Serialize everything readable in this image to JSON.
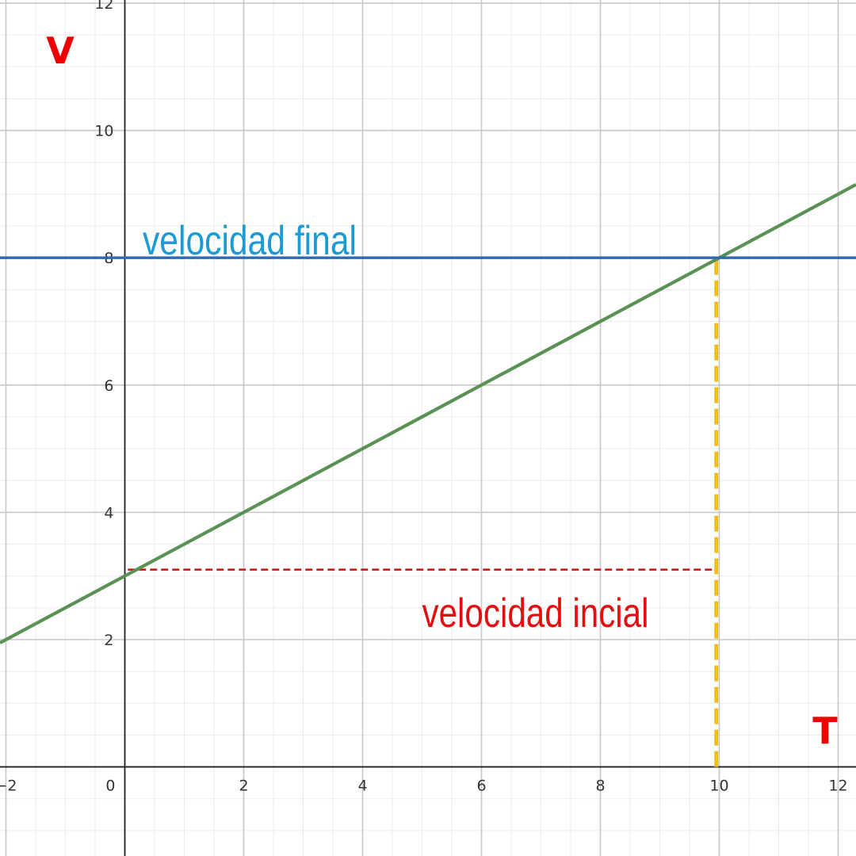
{
  "chart_data": {
    "type": "line",
    "xlim": [
      -2.1,
      12.3
    ],
    "ylim": [
      -1.4,
      12.05
    ],
    "x_ticks": [
      -2,
      0,
      2,
      4,
      6,
      8,
      10,
      12
    ],
    "y_ticks": [
      2,
      4,
      6,
      8,
      10,
      12
    ],
    "x_tick_labels": [
      "−2",
      "0",
      "2",
      "4",
      "6",
      "8",
      "10",
      "12"
    ],
    "y_tick_labels": [
      "2",
      "4",
      "6",
      "8",
      "10",
      "12"
    ],
    "major_grid_step": 2,
    "minor_grid_step": 0.5,
    "grid": true,
    "xlabel": "T",
    "ylabel": "V",
    "series": [
      {
        "type": "line",
        "slope": 0.5,
        "intercept": 3,
        "color": "#5a9155"
      },
      {
        "type": "hline",
        "y": 8,
        "color": "#3068b6"
      }
    ],
    "guides": [
      {
        "type": "hline-dashed",
        "y": 3.1,
        "x_from": 0.05,
        "x_to": 9.95,
        "color": "#d01a1a"
      },
      {
        "type": "vline-dashed",
        "x": 9.95,
        "y_from": 0,
        "y_to": 8,
        "color": "#f0bc1e"
      }
    ],
    "annotations": [
      {
        "text": "velocidad final",
        "x": 0.3,
        "y": 8.05,
        "color": "#1b9ad6"
      },
      {
        "text": "velocidad incial",
        "x": 5.0,
        "y": 2.2,
        "color": "#e01010"
      }
    ]
  }
}
